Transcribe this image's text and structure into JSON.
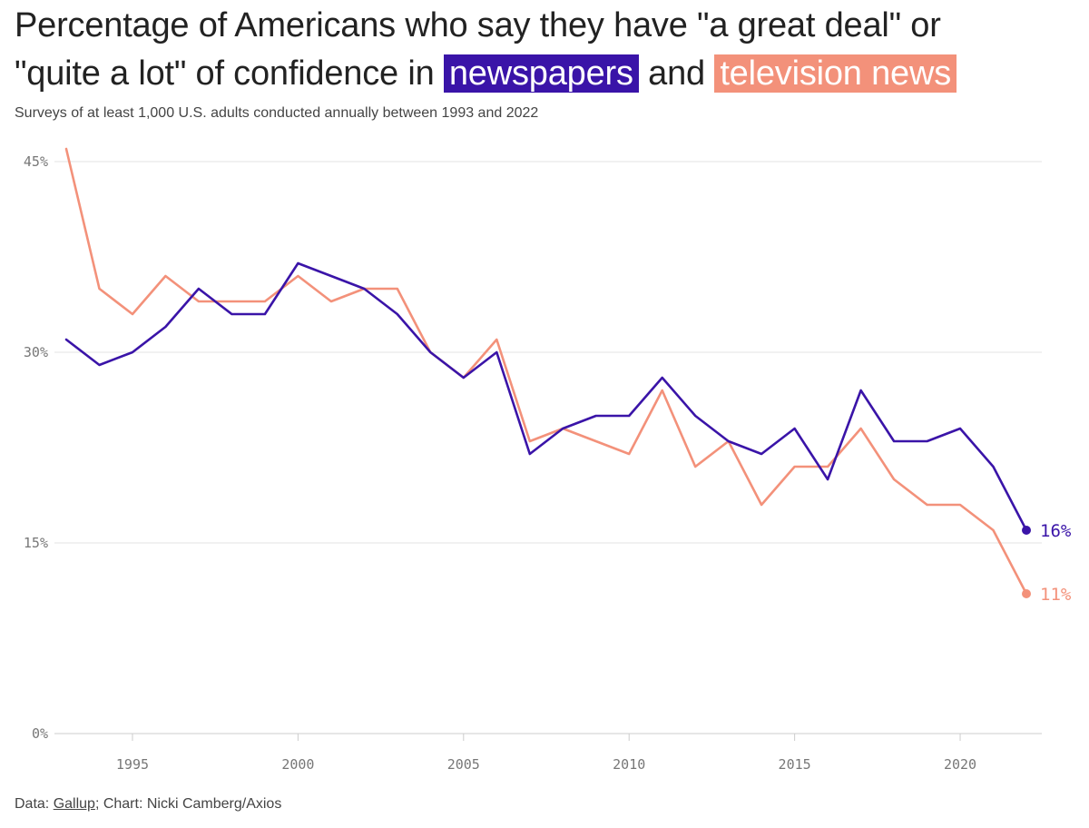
{
  "title": {
    "line1": "Percentage of Americans who say they have \"a great deal\" or",
    "line2_prefix": "\"quite a lot\" of confidence in",
    "series1_label": "newspapers",
    "joiner": "and",
    "series2_label": "television news"
  },
  "subtitle": "Surveys of at least 1,000 U.S. adults conducted annually between 1993 and 2022",
  "footer": {
    "prefix": "Data: ",
    "source": "Gallup",
    "suffix": "; Chart: Nicki Camberg/Axios"
  },
  "colors": {
    "newspapers": "#3a14a8",
    "television": "#f3917a",
    "grid": "#e3e3e3",
    "axis": "#cccccc"
  },
  "chart_data": {
    "type": "line",
    "title": "Percentage of Americans who say they have \"a great deal\" or \"quite a lot\" of confidence in newspapers and television news",
    "xlabel": "",
    "ylabel": "",
    "xlim": [
      1993,
      2022
    ],
    "ylim": [
      0,
      45
    ],
    "xticks": [
      1995,
      2000,
      2005,
      2010,
      2015,
      2020
    ],
    "yticks": [
      0,
      15,
      30,
      45
    ],
    "ytick_labels": [
      "0%",
      "15%",
      "30%",
      "45%"
    ],
    "x": [
      1993,
      1994,
      1995,
      1996,
      1997,
      1998,
      1999,
      2000,
      2001,
      2002,
      2003,
      2004,
      2005,
      2006,
      2007,
      2008,
      2009,
      2010,
      2011,
      2012,
      2013,
      2014,
      2015,
      2016,
      2017,
      2018,
      2019,
      2020,
      2021,
      2022
    ],
    "series": [
      {
        "name": "newspapers",
        "end_label": "16%",
        "values": [
          31,
          29,
          30,
          32,
          35,
          33,
          33,
          37,
          36,
          35,
          33,
          30,
          28,
          30,
          22,
          24,
          25,
          25,
          28,
          25,
          23,
          22,
          24,
          20,
          27,
          23,
          23,
          24,
          21,
          16
        ]
      },
      {
        "name": "television news",
        "end_label": "11%",
        "values": [
          46,
          35,
          33,
          36,
          34,
          34,
          34,
          36,
          34,
          35,
          35,
          30,
          28,
          31,
          23,
          24,
          23,
          22,
          27,
          21,
          23,
          18,
          21,
          21,
          24,
          20,
          18,
          18,
          16,
          11
        ]
      }
    ],
    "grid": true,
    "legend": "inline in title"
  }
}
